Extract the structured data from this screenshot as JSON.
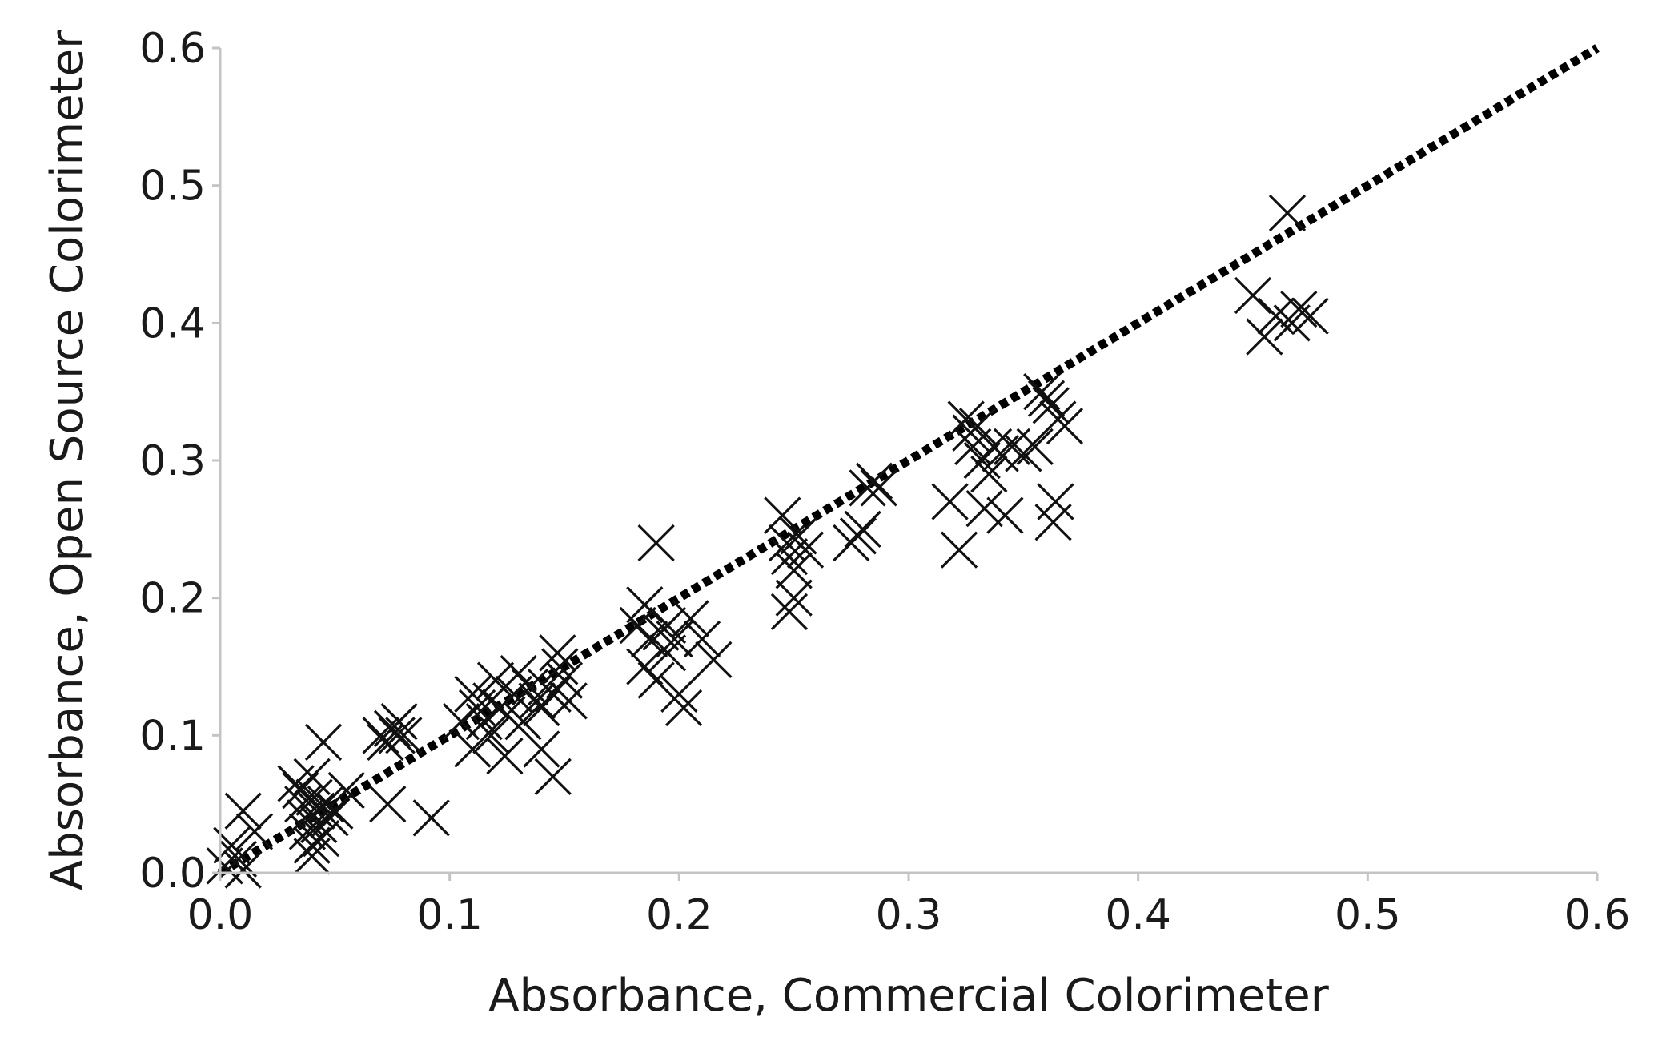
{
  "chart_data": {
    "type": "scatter",
    "title": "",
    "xlabel": "Absorbance, Commercial Colorimeter",
    "ylabel": "Absorbance, Open Source Colorimeter",
    "xlim": [
      0.0,
      0.6
    ],
    "ylim": [
      0.0,
      0.6
    ],
    "x_ticks": [
      "0.0",
      "0.1",
      "0.2",
      "0.3",
      "0.4",
      "0.5",
      "0.6"
    ],
    "y_ticks": [
      "0.0",
      "0.1",
      "0.2",
      "0.3",
      "0.4",
      "0.5",
      "0.6"
    ],
    "grid": false,
    "legend": "none",
    "marker": "x",
    "marker_color": "#111111",
    "fit_line": {
      "style": "dotted",
      "color": "#000000",
      "x": [
        0.0,
        0.6
      ],
      "y": [
        0.0,
        0.6
      ]
    },
    "points": [
      [
        0.002,
        0.005
      ],
      [
        0.005,
        0.02
      ],
      [
        0.008,
        0.01
      ],
      [
        0.01,
        0.045
      ],
      [
        0.015,
        0.03
      ],
      [
        0.01,
        0.002
      ],
      [
        0.033,
        0.065
      ],
      [
        0.035,
        0.06
      ],
      [
        0.036,
        0.05
      ],
      [
        0.037,
        0.04
      ],
      [
        0.038,
        0.03
      ],
      [
        0.04,
        0.02
      ],
      [
        0.04,
        0.07
      ],
      [
        0.041,
        0.055
      ],
      [
        0.042,
        0.045
      ],
      [
        0.043,
        0.035
      ],
      [
        0.044,
        0.025
      ],
      [
        0.04,
        0.012
      ],
      [
        0.045,
        0.095
      ],
      [
        0.046,
        0.05
      ],
      [
        0.048,
        0.04
      ],
      [
        0.05,
        0.045
      ],
      [
        0.055,
        0.06
      ],
      [
        0.07,
        0.1
      ],
      [
        0.072,
        0.095
      ],
      [
        0.075,
        0.105
      ],
      [
        0.077,
        0.1
      ],
      [
        0.078,
        0.11
      ],
      [
        0.08,
        0.1
      ],
      [
        0.073,
        0.05
      ],
      [
        0.092,
        0.04
      ],
      [
        0.11,
        0.13
      ],
      [
        0.112,
        0.12
      ],
      [
        0.115,
        0.11
      ],
      [
        0.118,
        0.125
      ],
      [
        0.12,
        0.14
      ],
      [
        0.122,
        0.12
      ],
      [
        0.125,
        0.115
      ],
      [
        0.128,
        0.13
      ],
      [
        0.13,
        0.145
      ],
      [
        0.132,
        0.11
      ],
      [
        0.135,
        0.135
      ],
      [
        0.138,
        0.125
      ],
      [
        0.14,
        0.12
      ],
      [
        0.142,
        0.135
      ],
      [
        0.145,
        0.13
      ],
      [
        0.148,
        0.15
      ],
      [
        0.15,
        0.14
      ],
      [
        0.152,
        0.125
      ],
      [
        0.147,
        0.16
      ],
      [
        0.14,
        0.09
      ],
      [
        0.145,
        0.07
      ],
      [
        0.124,
        0.085
      ],
      [
        0.118,
        0.1
      ],
      [
        0.105,
        0.11
      ],
      [
        0.11,
        0.09
      ],
      [
        0.182,
        0.18
      ],
      [
        0.185,
        0.15
      ],
      [
        0.187,
        0.17
      ],
      [
        0.19,
        0.24
      ],
      [
        0.192,
        0.175
      ],
      [
        0.195,
        0.18
      ],
      [
        0.195,
        0.16
      ],
      [
        0.198,
        0.17
      ],
      [
        0.2,
        0.13
      ],
      [
        0.202,
        0.12
      ],
      [
        0.205,
        0.185
      ],
      [
        0.21,
        0.17
      ],
      [
        0.215,
        0.155
      ],
      [
        0.19,
        0.14
      ],
      [
        0.185,
        0.195
      ],
      [
        0.245,
        0.26
      ],
      [
        0.247,
        0.24
      ],
      [
        0.248,
        0.23
      ],
      [
        0.25,
        0.22
      ],
      [
        0.25,
        0.2
      ],
      [
        0.248,
        0.19
      ],
      [
        0.252,
        0.245
      ],
      [
        0.255,
        0.235
      ],
      [
        0.275,
        0.24
      ],
      [
        0.278,
        0.245
      ],
      [
        0.28,
        0.25
      ],
      [
        0.282,
        0.28
      ],
      [
        0.285,
        0.285
      ],
      [
        0.287,
        0.28
      ],
      [
        0.318,
        0.27
      ],
      [
        0.322,
        0.235
      ],
      [
        0.325,
        0.33
      ],
      [
        0.327,
        0.32
      ],
      [
        0.328,
        0.31
      ],
      [
        0.33,
        0.325
      ],
      [
        0.332,
        0.3
      ],
      [
        0.333,
        0.265
      ],
      [
        0.335,
        0.29
      ],
      [
        0.337,
        0.31
      ],
      [
        0.34,
        0.305
      ],
      [
        0.342,
        0.26
      ],
      [
        0.345,
        0.31
      ],
      [
        0.35,
        0.305
      ],
      [
        0.355,
        0.31
      ],
      [
        0.358,
        0.35
      ],
      [
        0.36,
        0.345
      ],
      [
        0.362,
        0.34
      ],
      [
        0.363,
        0.255
      ],
      [
        0.364,
        0.27
      ],
      [
        0.365,
        0.33
      ],
      [
        0.368,
        0.325
      ],
      [
        0.45,
        0.42
      ],
      [
        0.455,
        0.39
      ],
      [
        0.46,
        0.405
      ],
      [
        0.465,
        0.48
      ],
      [
        0.467,
        0.4
      ],
      [
        0.47,
        0.41
      ],
      [
        0.475,
        0.405
      ]
    ]
  }
}
